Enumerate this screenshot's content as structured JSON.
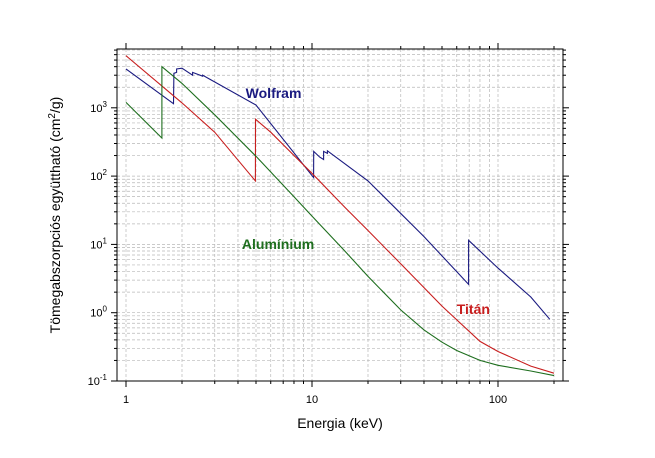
{
  "chart_data": {
    "type": "line",
    "xscale": "log",
    "yscale": "log",
    "xlim": [
      1,
      200
    ],
    "ylim": [
      0.1,
      8000
    ],
    "grid": true,
    "xlabel": "Energia (keV)",
    "ylabel": "Tömegabszorpciós együttható (cm²/g)",
    "ylabel_main": "Tömegabszorpciós együttható (cm",
    "ylabel_sup": "2",
    "ylabel_end": "/g)",
    "x_ticks": [
      {
        "value": 1,
        "label": "1"
      },
      {
        "value": 10,
        "label": "10"
      },
      {
        "value": 100,
        "label": "100"
      }
    ],
    "y_ticks": [
      {
        "value": 0.1,
        "base": "10",
        "exp": "-1"
      },
      {
        "value": 1,
        "base": "10",
        "exp": "0"
      },
      {
        "value": 10,
        "base": "10",
        "exp": "1"
      },
      {
        "value": 100,
        "base": "10",
        "exp": "2"
      },
      {
        "value": 1000,
        "base": "10",
        "exp": "3"
      }
    ],
    "series": [
      {
        "name": "Wolfram",
        "color": "#1a1a80",
        "label_at": [
          4.4,
          1400
        ],
        "points": [
          [
            1.0,
            3700
          ],
          [
            1.8,
            1150
          ],
          [
            1.81,
            3200
          ],
          [
            1.87,
            3300
          ],
          [
            1.87,
            3700
          ],
          [
            2.0,
            3800
          ],
          [
            2.28,
            3000
          ],
          [
            2.28,
            3300
          ],
          [
            2.58,
            2900
          ],
          [
            2.58,
            3000
          ],
          [
            2.8,
            2650
          ],
          [
            5.0,
            1100
          ],
          [
            10.2,
            95
          ],
          [
            10.21,
            230
          ],
          [
            11.0,
            190
          ],
          [
            11.54,
            175
          ],
          [
            11.54,
            230
          ],
          [
            12.1,
            215
          ],
          [
            12.1,
            235
          ],
          [
            20,
            85
          ],
          [
            40,
            13
          ],
          [
            69.5,
            2.6
          ],
          [
            69.53,
            11.5
          ],
          [
            100,
            4.5
          ],
          [
            150,
            1.7
          ],
          [
            190,
            0.8
          ]
        ]
      },
      {
        "name": "Titán",
        "color": "#c81e1e",
        "label_at": [
          60,
          0.95
        ],
        "points": [
          [
            1.0,
            5800
          ],
          [
            2.0,
            1180
          ],
          [
            3.0,
            440
          ],
          [
            4.96,
            85
          ],
          [
            4.97,
            680
          ],
          [
            6.0,
            440
          ],
          [
            8.0,
            200
          ],
          [
            10.0,
            110
          ],
          [
            15.0,
            35
          ],
          [
            20.0,
            16
          ],
          [
            30.0,
            5.2
          ],
          [
            50.0,
            1.25
          ],
          [
            80.0,
            0.38
          ],
          [
            100.0,
            0.27
          ],
          [
            150.0,
            0.165
          ],
          [
            200.0,
            0.13
          ]
        ]
      },
      {
        "name": "Alumínium",
        "color": "#1e6e1e",
        "label_at": [
          4.2,
          8.5
        ],
        "points": [
          [
            1.0,
            1200
          ],
          [
            1.559,
            360
          ],
          [
            1.56,
            4000
          ],
          [
            2.0,
            2280
          ],
          [
            3.0,
            790
          ],
          [
            5.0,
            195
          ],
          [
            8.0,
            50
          ],
          [
            10.0,
            26
          ],
          [
            15.0,
            8.0
          ],
          [
            20.0,
            3.4
          ],
          [
            30.0,
            1.1
          ],
          [
            40.0,
            0.56
          ],
          [
            50.0,
            0.37
          ],
          [
            60.0,
            0.28
          ],
          [
            80.0,
            0.2
          ],
          [
            100.0,
            0.17
          ],
          [
            150.0,
            0.14
          ],
          [
            200.0,
            0.12
          ]
        ]
      }
    ]
  }
}
